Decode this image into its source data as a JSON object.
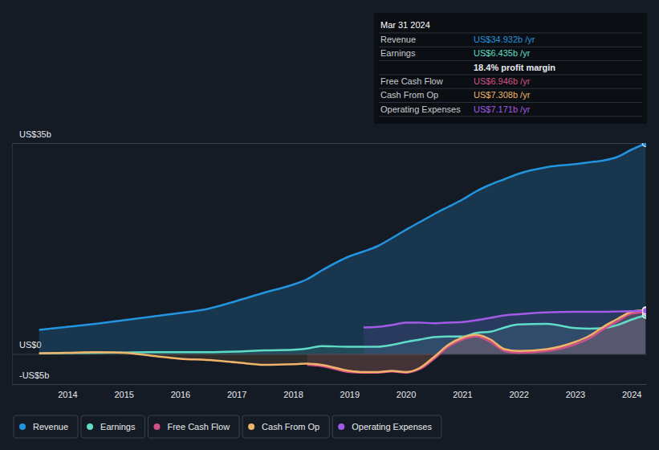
{
  "chart_data": {
    "type": "line",
    "x": [
      2013.5,
      2014,
      2014.5,
      2015,
      2015.5,
      2016,
      2016.5,
      2017,
      2017.5,
      2018,
      2018.25,
      2018.5,
      2019,
      2019.25,
      2019.5,
      2019.75,
      2020,
      2020.25,
      2020.5,
      2020.75,
      2021,
      2021.25,
      2021.5,
      2021.75,
      2022,
      2022.5,
      2023,
      2023.25,
      2023.5,
      2023.75,
      2024,
      2024.25
    ],
    "series": [
      {
        "name": "Revenue",
        "color": "#2394df",
        "values": [
          4.0,
          4.5,
          5.0,
          5.6,
          6.2,
          6.8,
          7.5,
          8.8,
          10.2,
          11.5,
          12.4,
          13.8,
          16.2,
          17.0,
          17.9,
          19.2,
          20.6,
          21.9,
          23.2,
          24.4,
          25.6,
          27.0,
          28.1,
          29.0,
          29.9,
          31.0,
          31.5,
          31.8,
          32.1,
          32.7,
          33.9,
          34.932
        ]
      },
      {
        "name": "Earnings",
        "color": "#5fdcc6",
        "values": [
          0.1,
          0.15,
          0.2,
          0.25,
          0.3,
          0.3,
          0.3,
          0.4,
          0.6,
          0.7,
          0.9,
          1.3,
          1.2,
          1.2,
          1.2,
          1.5,
          2.0,
          2.4,
          2.8,
          2.9,
          2.9,
          3.5,
          3.7,
          4.4,
          4.9,
          5.0,
          4.3,
          4.2,
          4.3,
          4.8,
          5.7,
          6.435
        ]
      },
      {
        "name": "Free Cash Flow",
        "color": "#d44f87",
        "values": [
          null,
          null,
          null,
          null,
          null,
          null,
          null,
          null,
          null,
          null,
          -1.8,
          -2.0,
          -3.0,
          -3.1,
          -3.1,
          -2.9,
          -3.1,
          -2.5,
          -0.8,
          1.2,
          2.4,
          2.9,
          2.0,
          0.5,
          0.2,
          0.5,
          1.6,
          2.6,
          4.1,
          5.4,
          6.7,
          6.946
        ]
      },
      {
        "name": "Cash From Op",
        "color": "#efb36a",
        "values": [
          0.1,
          0.2,
          0.3,
          0.2,
          -0.3,
          -0.8,
          -1.0,
          -1.4,
          -1.8,
          -1.7,
          -1.6,
          -1.8,
          -2.8,
          -3.0,
          -3.0,
          -2.8,
          -3.0,
          -2.3,
          -0.5,
          1.5,
          2.7,
          3.2,
          2.4,
          0.8,
          0.5,
          0.8,
          2.0,
          3.0,
          4.5,
          5.8,
          7.0,
          7.308
        ]
      },
      {
        "name": "Operating Expenses",
        "color": "#a35ae6",
        "values": [
          null,
          null,
          null,
          null,
          null,
          null,
          null,
          null,
          null,
          null,
          null,
          null,
          null,
          4.4,
          4.5,
          4.8,
          5.2,
          5.2,
          5.1,
          5.2,
          5.3,
          5.6,
          6.0,
          6.4,
          6.6,
          6.9,
          7.0,
          7.0,
          7.0,
          7.05,
          7.1,
          7.171
        ]
      }
    ],
    "xlim": [
      2013.02,
      2024.26
    ],
    "xticks": [
      2014,
      2015,
      2016,
      2017,
      2018,
      2019,
      2020,
      2021,
      2022,
      2023,
      2024
    ],
    "ylim": [
      -5,
      35
    ],
    "yticks": [
      {
        "value": -5,
        "label": "-US$5b"
      },
      {
        "value": 0,
        "label": "US$0"
      },
      {
        "value": 35,
        "label": "US$35b"
      }
    ],
    "grid": true,
    "legend": "bottom",
    "annotations": {
      "date": "Mar 31 2024",
      "rows": [
        {
          "label": "Revenue",
          "value": "US$34.932b /yr"
        },
        {
          "label": "Earnings",
          "value": "US$6.435b /yr"
        },
        {
          "label": "Free Cash Flow",
          "value": "US$6.946b /yr"
        },
        {
          "label": "Cash From Op",
          "value": "US$7.308b /yr"
        },
        {
          "label": "Operating Expenses",
          "value": "US$7.171b /yr"
        }
      ],
      "note": "18.4% profit margin"
    }
  }
}
